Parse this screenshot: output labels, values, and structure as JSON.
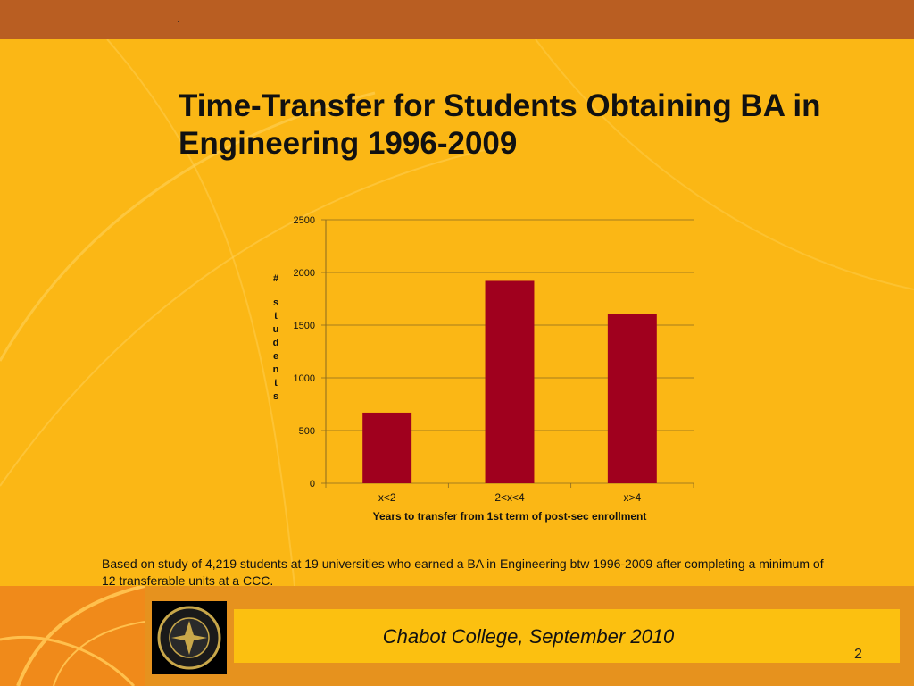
{
  "slide": {
    "top_mark": ".",
    "title": "Time-Transfer for Students Obtaining BA in Engineering 1996-2009",
    "footnote": "Based on study of 4,219 students at 19 universities who earned a BA in Engineering btw 1996-2009 after completing a minimum of 12 transferable units at a CCC.",
    "footer": "Chabot College, September 2010",
    "page_number": "2",
    "logo_alt": "Chabot College seal",
    "logo_text": "CHABOT COLLEGE 1961"
  },
  "colors": {
    "background": "#fbb715",
    "band": "#b95e22",
    "bar": "#a0001e",
    "footer_bar": "#fcc010"
  },
  "chart_data": {
    "type": "bar",
    "categories": [
      "x<2",
      "2<x<4",
      "x>4"
    ],
    "values": [
      670,
      1920,
      1610
    ],
    "title": "",
    "xlabel": "Years to transfer from 1st term of post-sec enrollment",
    "ylabel": "# students",
    "ylim": [
      0,
      2500
    ],
    "yticks": [
      0,
      500,
      1000,
      1500,
      2000,
      2500
    ],
    "grid": true,
    "legend": "none",
    "bar_color": "#a0001e"
  }
}
